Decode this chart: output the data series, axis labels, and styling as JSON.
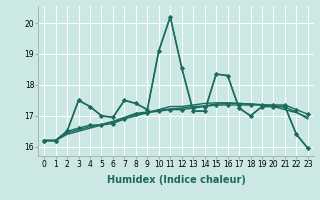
{
  "title": "",
  "xlabel": "Humidex (Indice chaleur)",
  "bg_color": "#cce8e4",
  "line_color": "#1a6b5e",
  "grid_color": "#ffffff",
  "xlim": [
    -0.5,
    23.5
  ],
  "ylim": [
    15.7,
    20.55
  ],
  "yticks": [
    16,
    17,
    18,
    19,
    20
  ],
  "ytick_labels": [
    "16",
    "17",
    "18",
    "19",
    "20"
  ],
  "xticks": [
    0,
    1,
    2,
    3,
    4,
    5,
    6,
    7,
    8,
    9,
    10,
    11,
    12,
    13,
    14,
    15,
    16,
    17,
    18,
    19,
    20,
    21,
    22,
    23
  ],
  "lines": [
    {
      "y": [
        16.2,
        16.2,
        16.4,
        16.5,
        16.6,
        16.7,
        16.8,
        16.9,
        17.0,
        17.1,
        17.2,
        17.3,
        17.3,
        17.35,
        17.4,
        17.42,
        17.42,
        17.4,
        17.38,
        17.35,
        17.3,
        17.2,
        17.1,
        16.95
      ],
      "marker": null,
      "lw": 1.0
    },
    {
      "y": [
        16.2,
        16.2,
        16.5,
        16.6,
        16.7,
        16.7,
        16.75,
        16.9,
        17.05,
        17.1,
        17.15,
        17.2,
        17.2,
        17.25,
        17.3,
        17.35,
        17.35,
        17.35,
        17.35,
        17.35,
        17.35,
        17.35,
        17.2,
        17.05
      ],
      "marker": "D",
      "lw": 1.0
    },
    {
      "y": [
        16.2,
        16.2,
        16.45,
        16.55,
        16.65,
        16.72,
        16.82,
        16.95,
        17.08,
        17.12,
        17.18,
        17.22,
        17.25,
        17.3,
        17.32,
        17.38,
        17.4,
        17.4,
        17.38,
        17.36,
        17.33,
        17.28,
        17.12,
        16.9
      ],
      "marker": null,
      "lw": 1.0
    },
    {
      "y": [
        16.2,
        16.2,
        16.5,
        17.5,
        17.3,
        17.0,
        16.95,
        17.5,
        17.4,
        17.2,
        19.1,
        20.2,
        18.55,
        17.15,
        17.15,
        18.35,
        18.3,
        17.25,
        17.0,
        17.3,
        17.3,
        17.3,
        16.4,
        15.95
      ],
      "marker": "D",
      "lw": 1.2
    },
    {
      "y": [
        16.2,
        16.2,
        16.5,
        17.5,
        17.3,
        17.0,
        16.95,
        17.5,
        17.4,
        17.2,
        19.1,
        20.2,
        18.55,
        17.15,
        17.15,
        18.35,
        18.3,
        17.25,
        17.0,
        17.3,
        17.3,
        17.3,
        16.4,
        15.95
      ],
      "marker": null,
      "lw": 0.8
    }
  ],
  "xlabel_fontsize": 7,
  "tick_fontsize": 5.5,
  "xlabel_color": "#1a6b5e",
  "xlabel_bold": true
}
